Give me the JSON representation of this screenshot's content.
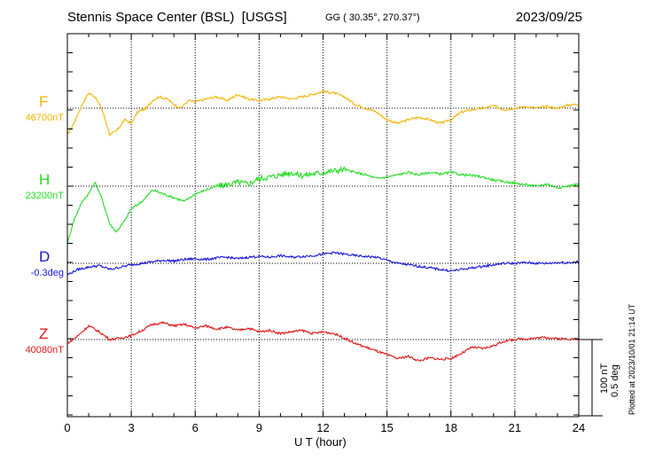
{
  "header": {
    "station": "Stennis Space Center (BSL)",
    "network": "[USGS]",
    "coords": "GG ( 30.35°, 270.37°)",
    "date": "2023/09/25"
  },
  "footer": {
    "plotted": "Plotted at 2023/10/01 21:14 UT"
  },
  "scale_bar": {
    "label1": "100 nT",
    "label2": "0.5 deg"
  },
  "chart_data": {
    "type": "line",
    "xlabel": "U T (hour)",
    "xlim": [
      0,
      24
    ],
    "xticks": [
      "0",
      "3",
      "6",
      "9",
      "12",
      "15",
      "18",
      "21",
      "24"
    ],
    "y_units_per_tick": "100 nT / 0.5 deg",
    "grid": "dotted at baselines and 3-hour marks",
    "series": [
      {
        "name": "F",
        "baseline_label": "46700nT",
        "color": "#f4b400",
        "x": [
          0,
          0.3,
          0.7,
          1.0,
          1.3,
          1.6,
          2.0,
          2.3,
          2.7,
          3.0,
          3.3,
          3.7,
          4.0,
          4.3,
          4.7,
          5.0,
          5.3,
          5.7,
          6.0,
          6.5,
          7.0,
          7.5,
          8.0,
          8.5,
          9.0,
          9.5,
          10.0,
          10.5,
          11.0,
          11.5,
          12.0,
          12.5,
          13.0,
          13.5,
          14.0,
          14.5,
          15.0,
          15.5,
          16.0,
          16.5,
          17.0,
          17.5,
          18.0,
          18.5,
          19.0,
          19.5,
          20.0,
          20.5,
          21.0,
          21.5,
          22.0,
          22.5,
          23.0,
          23.5,
          24.0
        ],
        "y": [
          -35,
          -20,
          5,
          20,
          15,
          0,
          -35,
          -30,
          -15,
          -20,
          -5,
          0,
          10,
          15,
          12,
          5,
          0,
          10,
          8,
          12,
          15,
          10,
          18,
          12,
          10,
          12,
          15,
          12,
          15,
          18,
          22,
          20,
          15,
          5,
          0,
          -5,
          -15,
          -20,
          -15,
          -12,
          -15,
          -20,
          -15,
          -5,
          -2,
          0,
          3,
          -2,
          0,
          2,
          0,
          2,
          0,
          4,
          5
        ]
      },
      {
        "name": "H",
        "baseline_label": "23200nT",
        "color": "#22dd22",
        "x": [
          0,
          0.3,
          0.7,
          1.0,
          1.3,
          1.6,
          2.0,
          2.3,
          2.7,
          3.0,
          3.5,
          4.0,
          4.5,
          5.0,
          5.5,
          6.0,
          6.5,
          7.0,
          7.5,
          8.0,
          8.5,
          9.0,
          9.5,
          10.0,
          10.5,
          11.0,
          11.5,
          12.0,
          12.5,
          13.0,
          13.5,
          14.0,
          14.5,
          15.0,
          15.5,
          16.0,
          16.5,
          17.0,
          17.5,
          18.0,
          18.5,
          19.0,
          19.5,
          20.0,
          20.5,
          21.0,
          21.5,
          22.0,
          22.5,
          23.0,
          23.5,
          24.0
        ],
        "y": [
          -75,
          -45,
          -20,
          -10,
          5,
          -15,
          -50,
          -60,
          -45,
          -30,
          -20,
          -5,
          -10,
          -15,
          -20,
          -10,
          -5,
          0,
          2,
          5,
          3,
          10,
          12,
          15,
          18,
          14,
          16,
          18,
          20,
          22,
          18,
          15,
          10,
          12,
          15,
          18,
          15,
          18,
          16,
          18,
          15,
          14,
          12,
          8,
          6,
          4,
          2,
          0,
          3,
          -2,
          0,
          3
        ]
      },
      {
        "name": "D",
        "baseline_label": "-0.3deg",
        "color": "#1414dc",
        "x": [
          0,
          0.5,
          1.0,
          1.5,
          2.0,
          2.5,
          3.0,
          3.5,
          4.0,
          4.5,
          5.0,
          5.5,
          6.0,
          6.5,
          7.0,
          7.5,
          8.0,
          8.5,
          9.0,
          9.5,
          10.0,
          10.5,
          11.0,
          11.5,
          12.0,
          12.5,
          13.0,
          13.5,
          14.0,
          14.5,
          15.0,
          15.5,
          16.0,
          16.5,
          17.0,
          17.5,
          18.0,
          18.5,
          19.0,
          19.5,
          20.0,
          20.5,
          21.0,
          21.5,
          22.0,
          22.5,
          23.0,
          23.5,
          24.0
        ],
        "y": [
          -15,
          -8,
          -5,
          -3,
          -8,
          -5,
          -2,
          0,
          2,
          4,
          3,
          5,
          6,
          5,
          7,
          8,
          6,
          8,
          9,
          8,
          10,
          8,
          9,
          10,
          12,
          14,
          12,
          10,
          9,
          8,
          4,
          0,
          -2,
          -4,
          -6,
          -8,
          -10,
          -8,
          -6,
          -4,
          -2,
          0,
          0,
          1,
          0,
          0,
          1,
          1,
          2
        ]
      },
      {
        "name": "Z",
        "baseline_label": "40080nT",
        "color": "#e01414",
        "x": [
          0,
          0.5,
          1.0,
          1.5,
          2.0,
          2.5,
          3.0,
          3.5,
          4.0,
          4.5,
          5.0,
          5.5,
          6.0,
          6.5,
          7.0,
          7.5,
          8.0,
          8.5,
          9.0,
          9.5,
          10.0,
          10.5,
          11.0,
          11.5,
          12.0,
          12.5,
          13.0,
          13.5,
          14.0,
          14.5,
          15.0,
          15.5,
          16.0,
          16.5,
          17.0,
          17.5,
          18.0,
          18.5,
          19.0,
          19.5,
          20.0,
          20.5,
          21.0,
          21.5,
          22.0,
          22.5,
          23.0,
          23.5,
          24.0
        ],
        "y": [
          -5,
          5,
          18,
          10,
          0,
          2,
          5,
          12,
          20,
          22,
          18,
          20,
          15,
          18,
          14,
          16,
          12,
          15,
          10,
          12,
          8,
          10,
          12,
          8,
          10,
          8,
          2,
          -5,
          -10,
          -15,
          -20,
          -25,
          -22,
          -28,
          -24,
          -26,
          -25,
          -18,
          -10,
          -12,
          -8,
          -2,
          0,
          1,
          2,
          3,
          1,
          1,
          0
        ]
      }
    ]
  }
}
